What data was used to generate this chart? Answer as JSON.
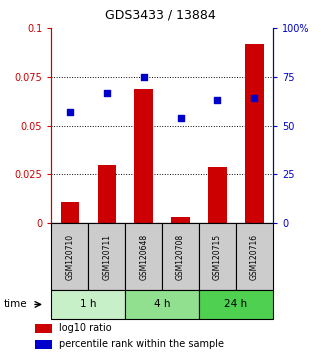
{
  "title": "GDS3433 / 13884",
  "samples": [
    "GSM120710",
    "GSM120711",
    "GSM120648",
    "GSM120708",
    "GSM120715",
    "GSM120716"
  ],
  "log10_ratio": [
    0.011,
    0.03,
    0.069,
    0.003,
    0.029,
    0.092
  ],
  "percentile_rank": [
    57,
    67,
    75,
    54,
    63,
    64
  ],
  "groups": [
    {
      "label": "1 h",
      "indices": [
        0,
        1
      ],
      "color": "#c8f0c8"
    },
    {
      "label": "4 h",
      "indices": [
        2,
        3
      ],
      "color": "#90e090"
    },
    {
      "label": "24 h",
      "indices": [
        4,
        5
      ],
      "color": "#50d050"
    }
  ],
  "bar_color": "#cc0000",
  "dot_color": "#0000cc",
  "left_axis_color": "#cc0000",
  "right_axis_color": "#0000cc",
  "ylim_left": [
    0,
    0.1
  ],
  "ylim_right": [
    0,
    100
  ],
  "yticks_left": [
    0,
    0.025,
    0.05,
    0.075,
    0.1
  ],
  "ytick_labels_left": [
    "0",
    "0.025",
    "0.05",
    "0.075",
    "0.1"
  ],
  "yticks_right": [
    0,
    25,
    50,
    75,
    100
  ],
  "ytick_labels_right": [
    "0",
    "25",
    "50",
    "75",
    "100%"
  ],
  "grid_lines": [
    0.025,
    0.05,
    0.075
  ],
  "sample_box_color": "#cccccc",
  "sample_box_edge": "#000000",
  "time_label": "time",
  "legend_ratio_label": "log10 ratio",
  "legend_pct_label": "percentile rank within the sample",
  "fig_width": 3.21,
  "fig_height": 3.54,
  "dpi": 100
}
